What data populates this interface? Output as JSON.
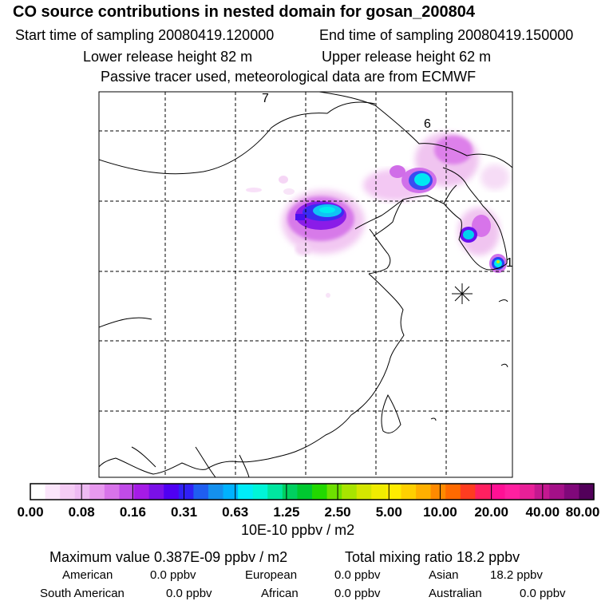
{
  "header": {
    "title": "CO  source contributions in nested domain for gosan_200804",
    "start_time": "Start time of sampling 20080419.120000",
    "end_time": "End time of sampling 20080419.150000",
    "lower_height": "Lower release height   82 m",
    "upper_height": "Upper release height   62 m",
    "note": "Passive tracer used, meteorological data are from ECMWF"
  },
  "map": {
    "labels": [
      "7",
      "6",
      "1"
    ]
  },
  "colorbar": {
    "colors": [
      "#ffffff",
      "#fbe6fb",
      "#f5ccf5",
      "#eebaf3",
      "#e899ef",
      "#d873ea",
      "#c04be8",
      "#a51be6",
      "#7a10e8",
      "#4f00f2",
      "#3020f5",
      "#1f5ef0",
      "#1490ee",
      "#00b2ff",
      "#00ecf8",
      "#00f5d8",
      "#00e6a0",
      "#00d060",
      "#00c830",
      "#22d800",
      "#6ee000",
      "#a8e400",
      "#d4e600",
      "#f0ec00",
      "#ffec00",
      "#ffd000",
      "#ffb000",
      "#ff8a00",
      "#ff6a00",
      "#ff3c20",
      "#ff2060",
      "#ff1095",
      "#ff20a0",
      "#e82098",
      "#c41890",
      "#a41088",
      "#80087a",
      "#52005a"
    ],
    "tick_labels": [
      "0.00",
      "0.08",
      "0.16",
      "0.31",
      "0.63",
      "1.25",
      "2.50",
      "5.00",
      "10.00",
      "20.00",
      "40.00",
      "80.00"
    ],
    "unit": "10E-10 ppbv / m2"
  },
  "summary": {
    "max_value": "Maximum value  0.387E-09 ppbv / m2",
    "total_mixing": "Total mixing ratio       18.2 ppbv",
    "american": "American",
    "american_val": "0.0 ppbv",
    "european": "European",
    "european_val": "0.0 ppbv",
    "asian": "Asian",
    "asian_val": "18.2 ppbv",
    "south_american": "South American",
    "south_american_val": "0.0 ppbv",
    "african": "African",
    "african_val": "0.0 ppbv",
    "australian": "Australian",
    "australian_val": "0.0 ppbv"
  }
}
